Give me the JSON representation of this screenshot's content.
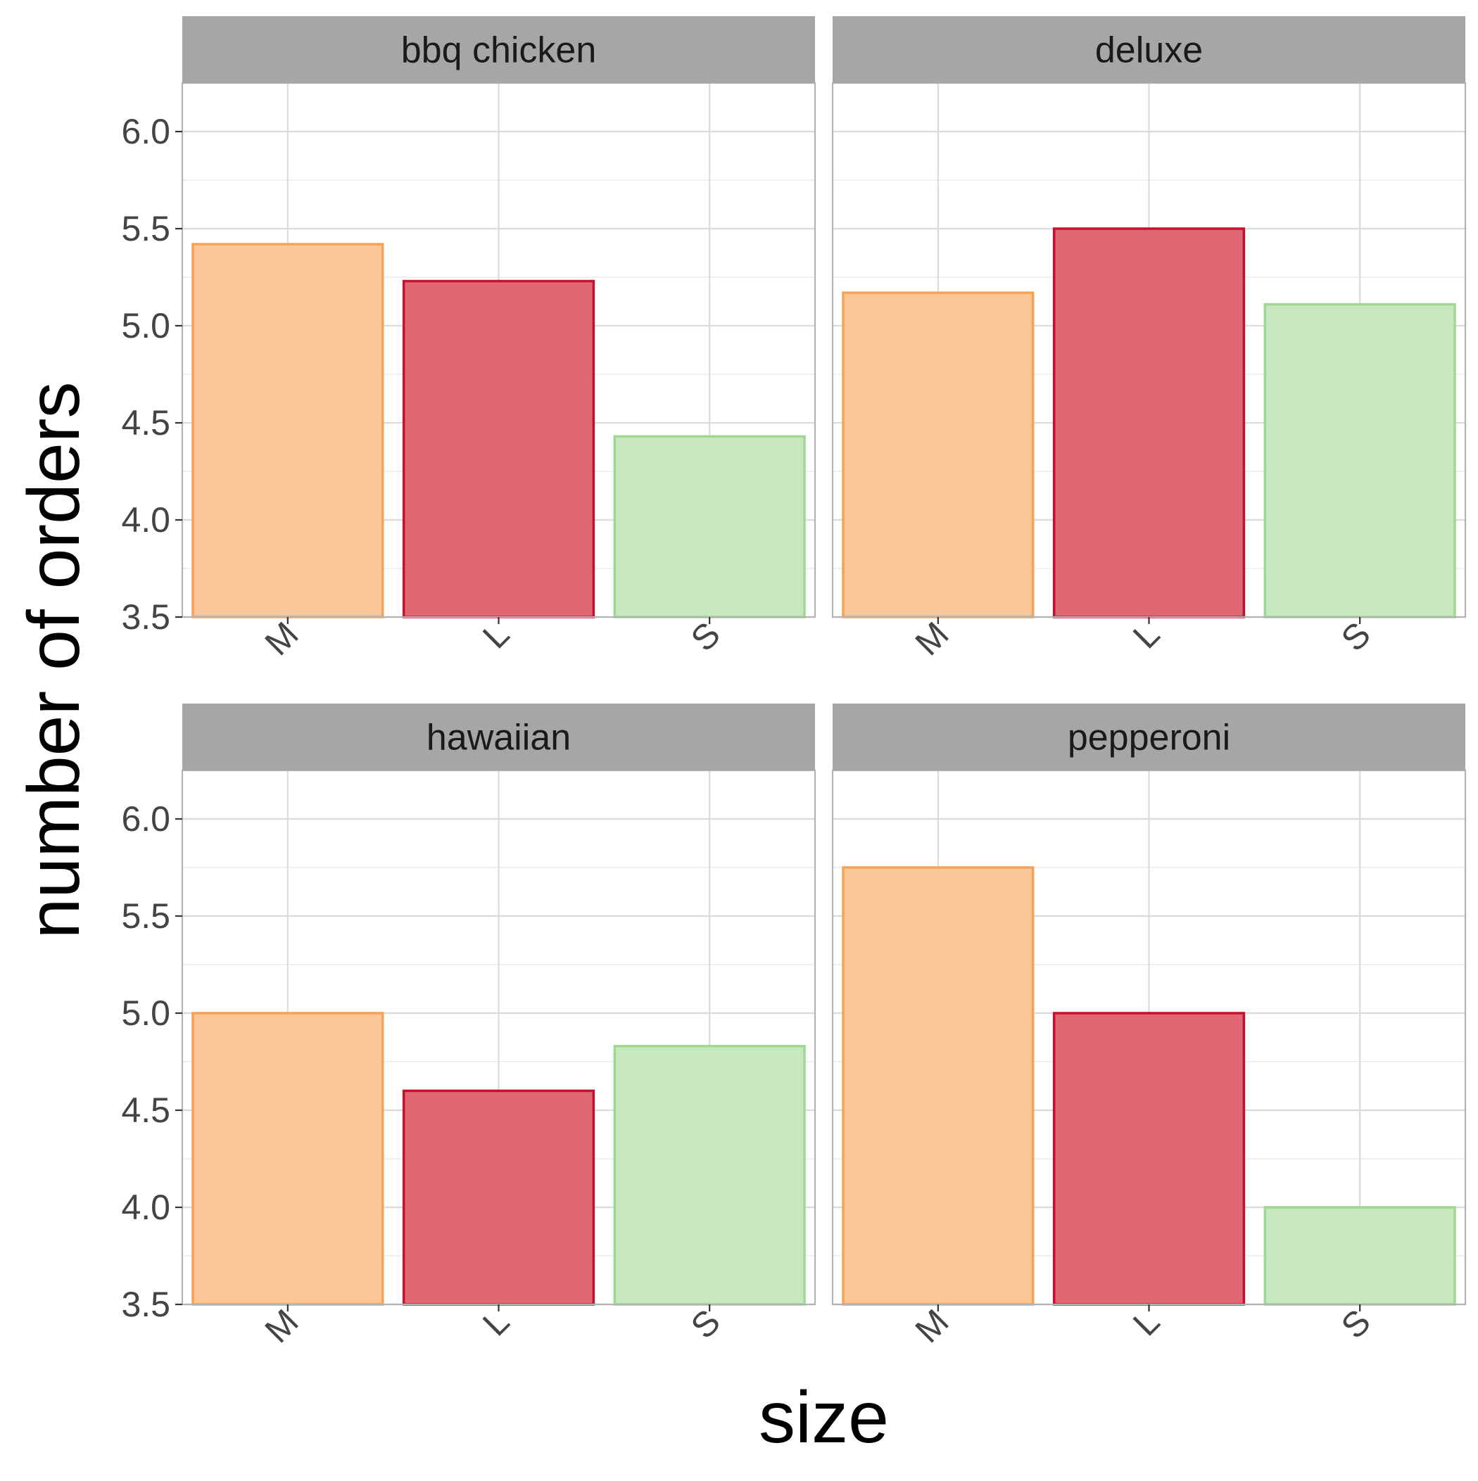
{
  "chart_data": {
    "type": "bar",
    "facets": true,
    "xlabel": "size",
    "ylabel": "number of orders",
    "categories": [
      "M",
      "L",
      "S"
    ],
    "ylim": [
      3.5,
      6.25
    ],
    "yticks": [
      "3.5",
      "4.0",
      "4.5",
      "5.0",
      "5.5",
      "6.0"
    ],
    "grid": true,
    "colors": {
      "M": {
        "fill": "#FCC597",
        "stroke": "#F5A256"
      },
      "L": {
        "fill": "#E06472",
        "stroke": "#C8102E"
      },
      "S": {
        "fill": "#C5E7BE",
        "stroke": "#A0D793"
      },
      "strip": "#A6A6A6",
      "grid": "#DBDBDB",
      "frame": "#B3B3B3"
    },
    "panels": [
      {
        "title": "bbq chicken",
        "values": [
          5.42,
          5.23,
          4.43
        ]
      },
      {
        "title": "deluxe",
        "values": [
          5.17,
          5.5,
          5.11
        ]
      },
      {
        "title": "hawaiian",
        "values": [
          5.0,
          4.6,
          4.83
        ]
      },
      {
        "title": "pepperoni",
        "values": [
          5.75,
          5.0,
          4.0
        ]
      }
    ]
  }
}
